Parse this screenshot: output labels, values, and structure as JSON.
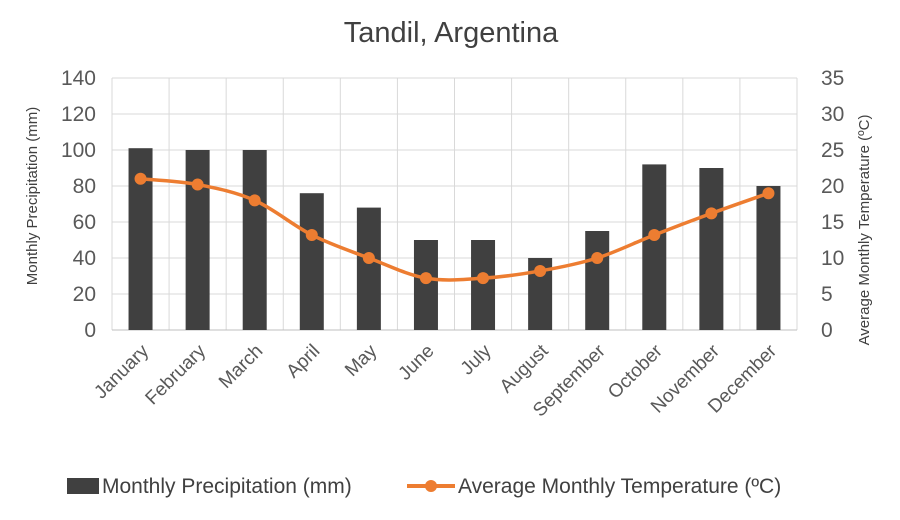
{
  "chart_data": {
    "type": "bar",
    "title": "Tandil, Argentina",
    "categories": [
      "January",
      "February",
      "March",
      "April",
      "May",
      "June",
      "July",
      "August",
      "September",
      "October",
      "November",
      "December"
    ],
    "series": [
      {
        "name": "Monthly Precipitation  (mm)",
        "type": "bar",
        "axis": "left",
        "color": "#404040",
        "values": [
          101,
          100,
          100,
          76,
          68,
          50,
          50,
          40,
          55,
          92,
          90,
          80
        ]
      },
      {
        "name": "Average Monthly  Temperature (ºC)",
        "type": "line",
        "axis": "right",
        "color": "#ED7D31",
        "values": [
          21,
          20.2,
          18,
          13.2,
          10,
          7.2,
          7.2,
          8.2,
          10,
          13.2,
          16.2,
          19
        ]
      }
    ],
    "y_left": {
      "label": "Monthly Precipitation  (mm)",
      "lim": [
        0,
        140
      ],
      "ticks": [
        "0",
        "20",
        "40",
        "60",
        "80",
        "100",
        "120",
        "140"
      ]
    },
    "y_right": {
      "label": "Average Monthly  Temperature (ºC)",
      "lim": [
        0,
        35
      ],
      "ticks": [
        "0",
        "5",
        "10",
        "15",
        "20",
        "25",
        "30",
        "35"
      ]
    },
    "grid": true,
    "legend_position": "bottom"
  }
}
